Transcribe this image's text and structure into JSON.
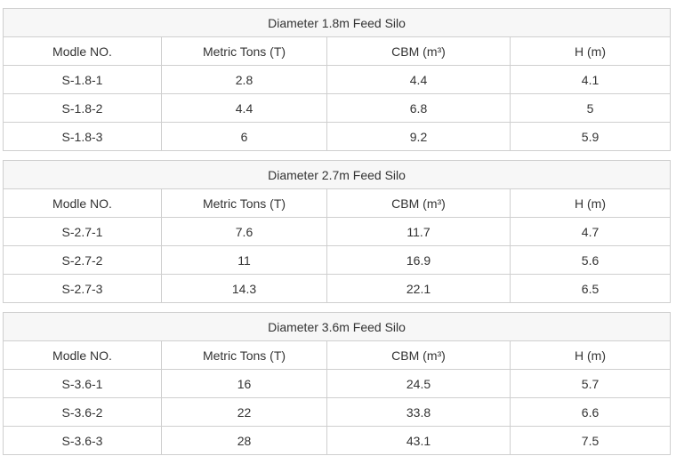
{
  "tables": [
    {
      "title": "Diameter 1.8m Feed Silo",
      "headers": [
        "Modle NO.",
        "Metric Tons (T)",
        "CBM (m³)",
        "H (m)"
      ],
      "rows": [
        [
          "S-1.8-1",
          "2.8",
          "4.4",
          "4.1"
        ],
        [
          "S-1.8-2",
          "4.4",
          "6.8",
          "5"
        ],
        [
          "S-1.8-3",
          "6",
          "9.2",
          "5.9"
        ]
      ]
    },
    {
      "title": "Diameter 2.7m Feed Silo",
      "headers": [
        "Modle NO.",
        "Metric Tons (T)",
        "CBM (m³)",
        "H (m)"
      ],
      "rows": [
        [
          "S-2.7-1",
          "7.6",
          "11.7",
          "4.7"
        ],
        [
          "S-2.7-2",
          "11",
          "16.9",
          "5.6"
        ],
        [
          "S-2.7-3",
          "14.3",
          "22.1",
          "6.5"
        ]
      ]
    },
    {
      "title": "Diameter 3.6m Feed Silo",
      "headers": [
        "Modle NO.",
        "Metric Tons (T)",
        "CBM (m³)",
        "H (m)"
      ],
      "rows": [
        [
          "S-3.6-1",
          "16",
          "24.5",
          "5.7"
        ],
        [
          "S-3.6-2",
          "22",
          "33.8",
          "6.6"
        ],
        [
          "S-3.6-3",
          "28",
          "43.1",
          "7.5"
        ]
      ]
    }
  ]
}
